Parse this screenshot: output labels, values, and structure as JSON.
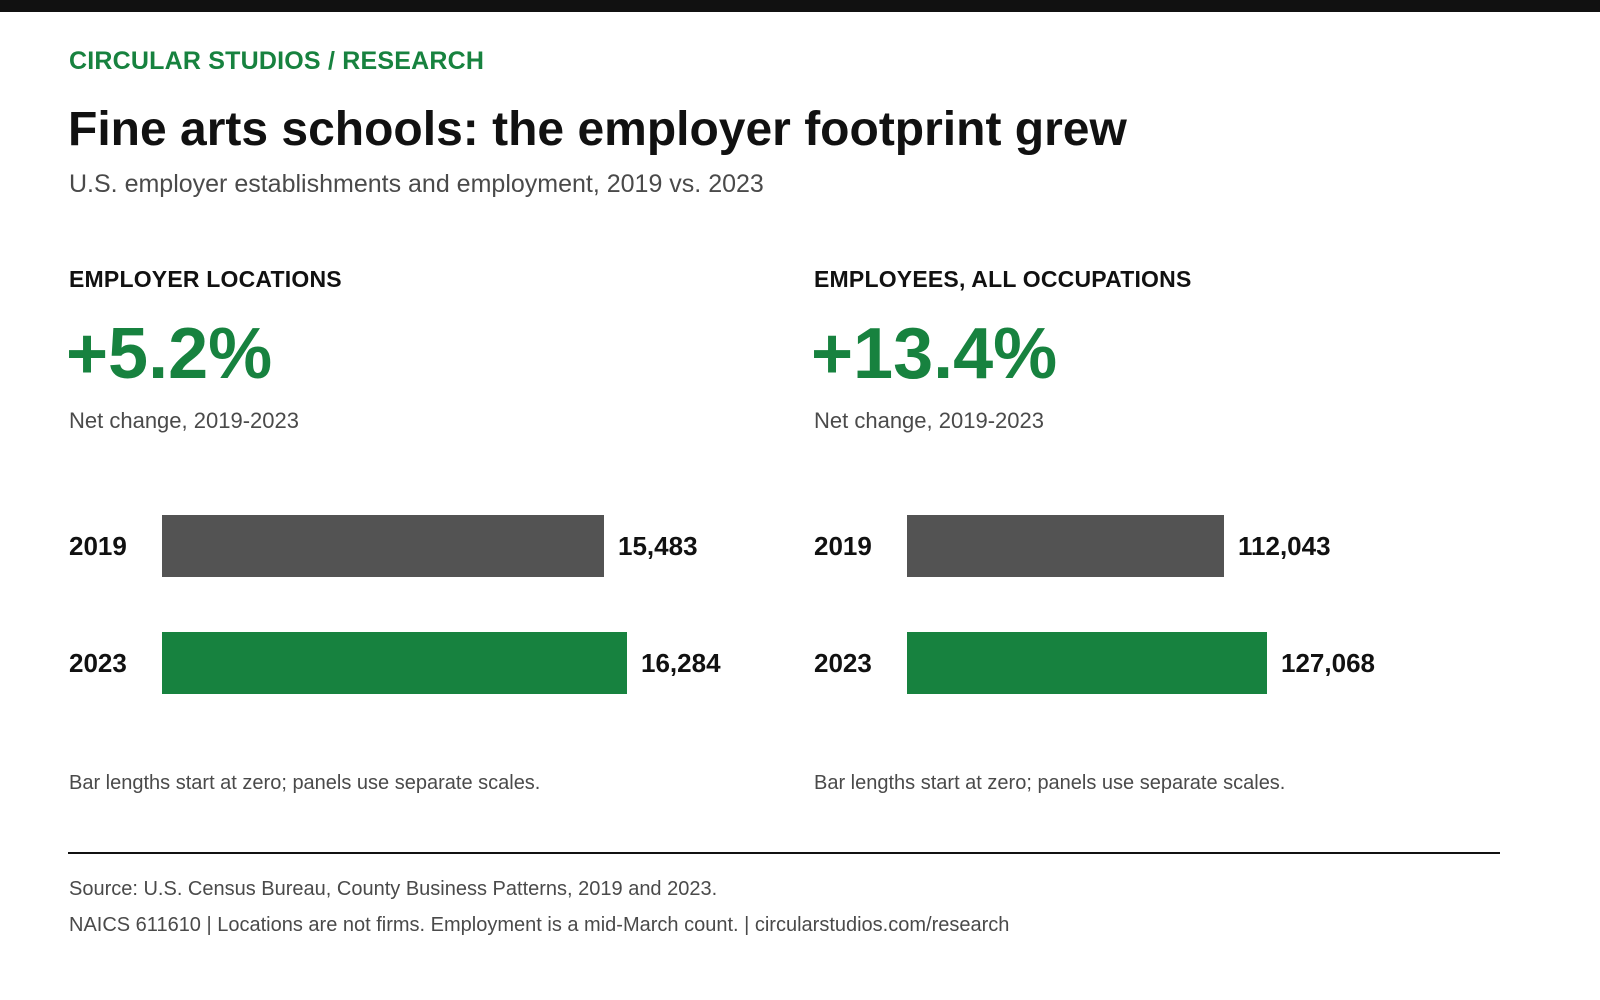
{
  "header": {
    "eyebrow": "CIRCULAR STUDIOS / RESEARCH",
    "title": "Fine arts schools: the employer footprint grew",
    "subtitle": "U.S. employer establishments and employment, 2019 vs. 2023"
  },
  "colors": {
    "accent": "#17823f",
    "bar_2019": "#535353",
    "bar_2023": "#17823f",
    "topbar": "#111111"
  },
  "chart_data": [
    {
      "type": "bar",
      "orientation": "horizontal",
      "title": "EMPLOYER LOCATIONS",
      "change": "+5.2%",
      "change_label": "Net change, 2019-2023",
      "categories": [
        "2019",
        "2023"
      ],
      "values": [
        15483,
        16284
      ],
      "value_labels": [
        "15,483",
        "16,284"
      ],
      "note": "Bar lengths start at zero; panels use separate scales.",
      "xlim": [
        0,
        21000
      ]
    },
    {
      "type": "bar",
      "orientation": "horizontal",
      "title": "EMPLOYEES, ALL OCCUPATIONS",
      "change": "+13.4%",
      "change_label": "Net change, 2019-2023",
      "categories": [
        "2019",
        "2023"
      ],
      "values": [
        112043,
        127068
      ],
      "value_labels": [
        "112,043",
        "127,068"
      ],
      "note": "Bar lengths start at zero; panels use separate scales.",
      "xlim": [
        0,
        212000
      ]
    }
  ],
  "footer": {
    "source": "Source: U.S. Census Bureau, County Business Patterns, 2019 and 2023.",
    "footnote": "NAICS 611610 | Locations are not firms. Employment is a mid-March count. | circularstudios.com/research"
  }
}
